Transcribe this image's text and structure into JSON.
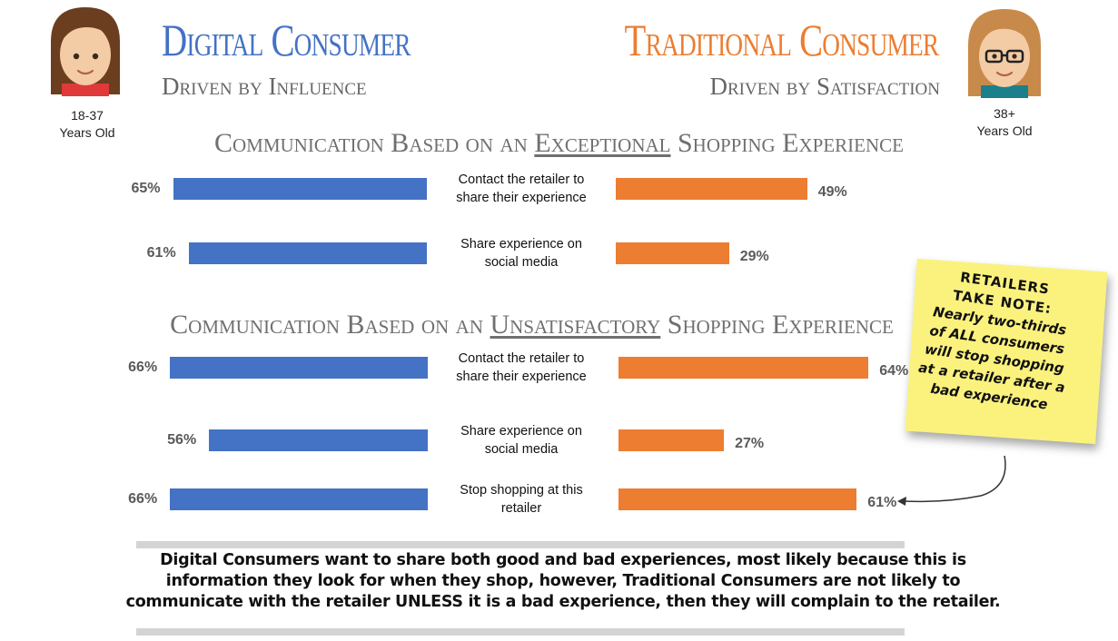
{
  "header": {
    "left_title": "Digital Consumer",
    "left_subtitle": "Driven by Influence",
    "left_age_line1": "18-37",
    "left_age_line2": "Years Old",
    "right_title": "Traditional Consumer",
    "right_subtitle": "Driven by Satisfaction",
    "right_age_line1": "38+",
    "right_age_line2": "Years Old"
  },
  "colors": {
    "digital": "#4472C4",
    "traditional": "#ED7D31",
    "left_title": "#4472C4",
    "right_title": "#ED7D31"
  },
  "sections": [
    {
      "title_pre": "Communication Based on an ",
      "title_em": "Exceptional",
      "title_post": " Shopping Experience"
    },
    {
      "title_pre": "Communication Based on an ",
      "title_em": "Unsatisfactory",
      "title_post": " Shopping Experience"
    }
  ],
  "chart_data": {
    "type": "bar",
    "scale_max": 100,
    "series": [
      {
        "name": "Digital Consumer",
        "color": "#4472C4"
      },
      {
        "name": "Traditional Consumer",
        "color": "#ED7D31"
      }
    ],
    "rows": [
      {
        "section": 0,
        "label_line1": "Contact the retailer to",
        "label_line2": "share their experience",
        "digital": 65,
        "traditional": 49,
        "digital_label": "65%",
        "traditional_label": "49%"
      },
      {
        "section": 0,
        "label_line1": "Share experience on",
        "label_line2": "social media",
        "digital": 61,
        "traditional": 29,
        "digital_label": "61%",
        "traditional_label": "29%"
      },
      {
        "section": 1,
        "label_line1": "Contact the retailer to",
        "label_line2": "share their experience",
        "digital": 66,
        "traditional": 64,
        "digital_label": "66%",
        "traditional_label": "64%"
      },
      {
        "section": 1,
        "label_line1": "Share experience on",
        "label_line2": "social media",
        "digital": 56,
        "traditional": 27,
        "digital_label": "56%",
        "traditional_label": "27%"
      },
      {
        "section": 1,
        "label_line1": "Stop shopping at this",
        "label_line2": "retailer",
        "digital": 66,
        "traditional": 61,
        "digital_label": "66%",
        "traditional_label": "61%"
      }
    ]
  },
  "note": {
    "heading_line1": "RETAILERS",
    "heading_line2": "TAKE NOTE:",
    "body_line1": "Nearly two-thirds",
    "body_line2": "of ALL consumers",
    "body_line3": "will stop shopping",
    "body_line4": "at a retailer after a",
    "body_line5": "bad experience"
  },
  "summary": {
    "line1": "Digital Consumers want to share both good and bad experiences, most likely because this is",
    "line2": "information they look for when they shop, however, Traditional Consumers are not likely to",
    "line3": "communicate with the retailer UNLESS it is a bad experience, then they will complain to the retailer."
  },
  "icons": [
    "digital-consumer-avatar",
    "traditional-consumer-avatar",
    "arrow-icon"
  ]
}
